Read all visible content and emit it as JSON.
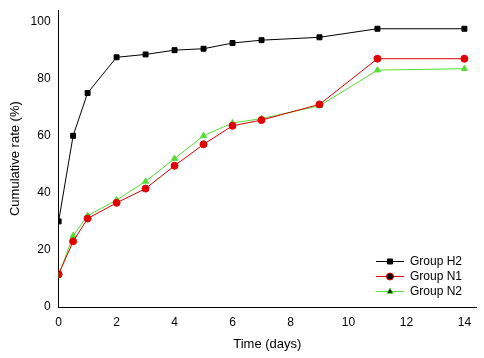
{
  "chart_data": {
    "type": "line",
    "x_label": "Time (days)",
    "y_label": "Cumulative rate (%)",
    "x": [
      0,
      0.5,
      1,
      2,
      3,
      4,
      5,
      6,
      7,
      9,
      11,
      14
    ],
    "series": [
      {
        "name": "Group H2",
        "color": "#000000",
        "marker": "square",
        "values": [
          30,
          60,
          75,
          87.5,
          88.5,
          90,
          90.5,
          92.5,
          93.5,
          94.5,
          97.5,
          97.5
        ]
      },
      {
        "name": "Group N1",
        "color": "#e00000",
        "marker": "circle",
        "values": [
          11.5,
          23,
          31,
          36.5,
          41.5,
          49.5,
          57,
          63.5,
          65.5,
          71,
          87,
          87
        ]
      },
      {
        "name": "Group N2",
        "color": "#55dd33",
        "marker": "triangle",
        "values": [
          11,
          25,
          32,
          37.5,
          44,
          52,
          60,
          64.5,
          66,
          70.5,
          83,
          83.5
        ]
      }
    ],
    "xlim": [
      0,
      14.4
    ],
    "xticks": [
      0,
      2,
      4,
      6,
      8,
      10,
      12,
      14
    ],
    "ylim": [
      0,
      104
    ],
    "yticks": [
      0,
      20,
      40,
      60,
      80,
      100
    ],
    "grid": false,
    "legend": "bottom-right"
  }
}
